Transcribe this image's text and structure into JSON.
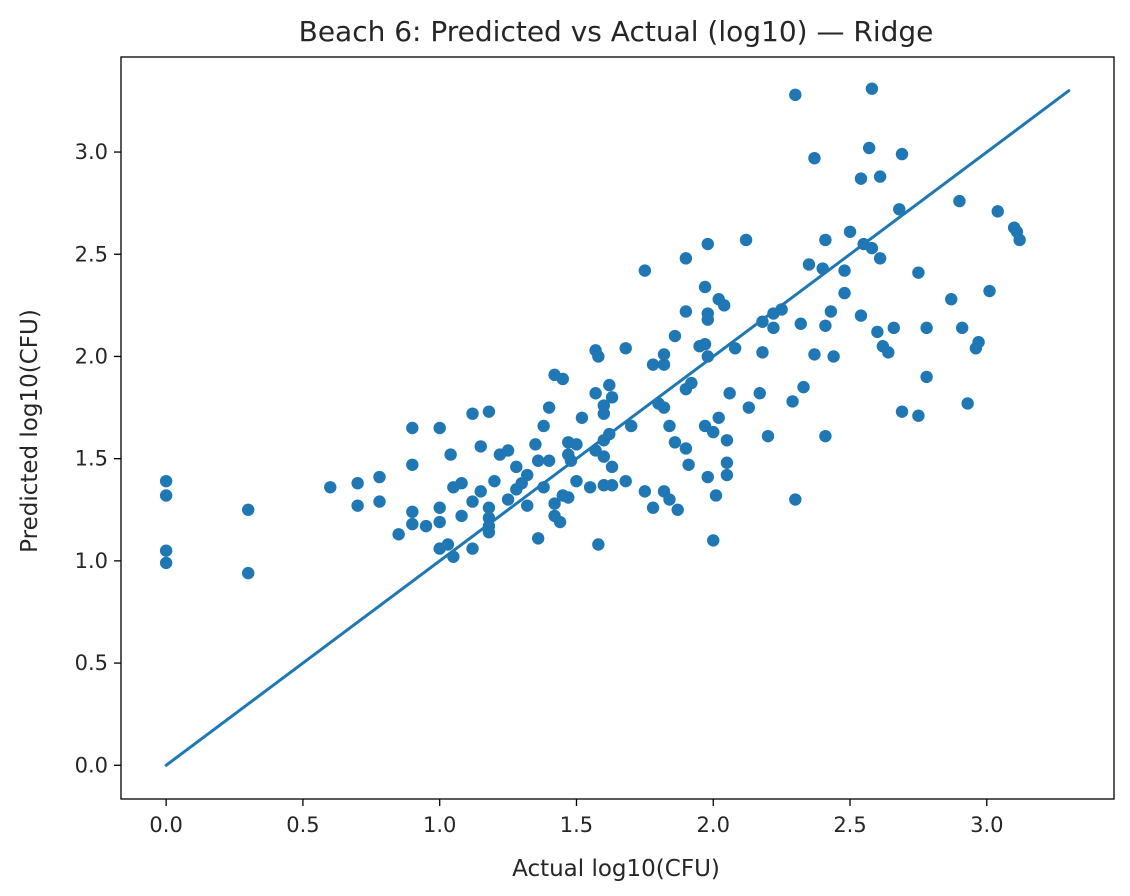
{
  "chart_data": {
    "type": "scatter",
    "title": "Beach 6: Predicted vs Actual (log10) — Ridge",
    "xlabel": "Actual log10(CFU)",
    "ylabel": "Predicted log10(CFU)",
    "xlim": [
      -0.165,
      3.465
    ],
    "ylim": [
      -0.165,
      3.465
    ],
    "x_ticks": [
      0.0,
      0.5,
      1.0,
      1.5,
      2.0,
      2.5,
      3.0
    ],
    "y_ticks": [
      0.0,
      0.5,
      1.0,
      1.5,
      2.0,
      2.5,
      3.0
    ],
    "x_tick_labels": [
      "0.0",
      "0.5",
      "1.0",
      "1.5",
      "2.0",
      "2.5",
      "3.0"
    ],
    "y_tick_labels": [
      "0.0",
      "0.5",
      "1.0",
      "1.5",
      "2.0",
      "2.5",
      "3.0"
    ],
    "grid": false,
    "colors": {
      "series": "#1f77b4",
      "axes": "#000000",
      "text": "#262626"
    },
    "reference_line": {
      "x": [
        0.0,
        3.3
      ],
      "y": [
        0.0,
        3.3
      ]
    },
    "series": [
      {
        "points": [
          [
            0.0,
            1.39
          ],
          [
            0.0,
            1.32
          ],
          [
            0.0,
            1.05
          ],
          [
            0.0,
            0.99
          ],
          [
            0.3,
            1.25
          ],
          [
            0.3,
            0.94
          ],
          [
            0.6,
            1.36
          ],
          [
            0.7,
            1.38
          ],
          [
            0.7,
            1.27
          ],
          [
            0.78,
            1.41
          ],
          [
            0.78,
            1.29
          ],
          [
            0.85,
            1.13
          ],
          [
            0.9,
            1.65
          ],
          [
            0.9,
            1.47
          ],
          [
            0.9,
            1.24
          ],
          [
            0.9,
            1.18
          ],
          [
            0.95,
            1.17
          ],
          [
            1.0,
            1.65
          ],
          [
            1.0,
            1.26
          ],
          [
            1.0,
            1.19
          ],
          [
            1.0,
            1.06
          ],
          [
            1.03,
            1.08
          ],
          [
            1.04,
            1.52
          ],
          [
            1.05,
            1.36
          ],
          [
            1.05,
            1.02
          ],
          [
            1.08,
            1.38
          ],
          [
            1.08,
            1.22
          ],
          [
            1.12,
            1.72
          ],
          [
            1.12,
            1.29
          ],
          [
            1.12,
            1.06
          ],
          [
            1.15,
            1.56
          ],
          [
            1.15,
            1.34
          ],
          [
            1.18,
            1.73
          ],
          [
            1.18,
            1.26
          ],
          [
            1.18,
            1.21
          ],
          [
            1.18,
            1.17
          ],
          [
            1.18,
            1.14
          ],
          [
            1.2,
            1.39
          ],
          [
            1.22,
            1.52
          ],
          [
            1.25,
            1.54
          ],
          [
            1.25,
            1.3
          ],
          [
            1.28,
            1.46
          ],
          [
            1.28,
            1.35
          ],
          [
            1.3,
            1.38
          ],
          [
            1.32,
            1.42
          ],
          [
            1.32,
            1.27
          ],
          [
            1.35,
            1.57
          ],
          [
            1.36,
            1.49
          ],
          [
            1.36,
            1.11
          ],
          [
            1.38,
            1.66
          ],
          [
            1.38,
            1.36
          ],
          [
            1.4,
            1.75
          ],
          [
            1.4,
            1.49
          ],
          [
            1.42,
            1.91
          ],
          [
            1.42,
            1.28
          ],
          [
            1.42,
            1.22
          ],
          [
            1.44,
            1.19
          ],
          [
            1.45,
            1.89
          ],
          [
            1.45,
            1.32
          ],
          [
            1.47,
            1.58
          ],
          [
            1.47,
            1.52
          ],
          [
            1.47,
            1.31
          ],
          [
            1.48,
            1.49
          ],
          [
            1.5,
            1.57
          ],
          [
            1.5,
            1.39
          ],
          [
            1.52,
            1.7
          ],
          [
            1.55,
            1.36
          ],
          [
            1.57,
            2.03
          ],
          [
            1.57,
            1.82
          ],
          [
            1.57,
            1.54
          ],
          [
            1.58,
            2.0
          ],
          [
            1.58,
            1.08
          ],
          [
            1.6,
            1.76
          ],
          [
            1.6,
            1.72
          ],
          [
            1.6,
            1.59
          ],
          [
            1.6,
            1.51
          ],
          [
            1.6,
            1.37
          ],
          [
            1.62,
            1.86
          ],
          [
            1.62,
            1.62
          ],
          [
            1.63,
            1.8
          ],
          [
            1.63,
            1.46
          ],
          [
            1.63,
            1.37
          ],
          [
            1.68,
            2.04
          ],
          [
            1.68,
            1.39
          ],
          [
            1.7,
            1.66
          ],
          [
            1.75,
            2.42
          ],
          [
            1.75,
            1.34
          ],
          [
            1.78,
            1.96
          ],
          [
            1.78,
            1.26
          ],
          [
            1.8,
            1.77
          ],
          [
            1.82,
            2.01
          ],
          [
            1.82,
            1.96
          ],
          [
            1.82,
            1.75
          ],
          [
            1.82,
            1.34
          ],
          [
            1.84,
            1.66
          ],
          [
            1.84,
            1.3
          ],
          [
            1.86,
            2.1
          ],
          [
            1.86,
            1.58
          ],
          [
            1.87,
            1.25
          ],
          [
            1.9,
            2.48
          ],
          [
            1.9,
            2.22
          ],
          [
            1.9,
            1.84
          ],
          [
            1.9,
            1.55
          ],
          [
            1.91,
            1.47
          ],
          [
            1.92,
            1.87
          ],
          [
            1.95,
            2.05
          ],
          [
            1.97,
            2.34
          ],
          [
            1.97,
            2.06
          ],
          [
            1.97,
            1.66
          ],
          [
            1.98,
            2.55
          ],
          [
            1.98,
            2.21
          ],
          [
            1.98,
            2.18
          ],
          [
            1.98,
            2.0
          ],
          [
            1.98,
            1.41
          ],
          [
            2.0,
            1.63
          ],
          [
            2.0,
            1.1
          ],
          [
            2.01,
            1.32
          ],
          [
            2.02,
            2.28
          ],
          [
            2.02,
            1.7
          ],
          [
            2.04,
            2.25
          ],
          [
            2.05,
            1.59
          ],
          [
            2.05,
            1.48
          ],
          [
            2.05,
            1.42
          ],
          [
            2.06,
            1.82
          ],
          [
            2.08,
            2.04
          ],
          [
            2.12,
            2.57
          ],
          [
            2.13,
            1.75
          ],
          [
            2.17,
            1.82
          ],
          [
            2.18,
            2.17
          ],
          [
            2.18,
            2.02
          ],
          [
            2.2,
            1.61
          ],
          [
            2.22,
            2.21
          ],
          [
            2.22,
            2.14
          ],
          [
            2.25,
            2.23
          ],
          [
            2.29,
            1.78
          ],
          [
            2.3,
            3.28
          ],
          [
            2.3,
            1.3
          ],
          [
            2.32,
            2.16
          ],
          [
            2.33,
            1.85
          ],
          [
            2.35,
            2.45
          ],
          [
            2.37,
            2.97
          ],
          [
            2.37,
            2.01
          ],
          [
            2.4,
            2.43
          ],
          [
            2.41,
            2.57
          ],
          [
            2.41,
            2.15
          ],
          [
            2.41,
            1.61
          ],
          [
            2.43,
            2.22
          ],
          [
            2.44,
            2.0
          ],
          [
            2.48,
            2.42
          ],
          [
            2.48,
            2.31
          ],
          [
            2.5,
            2.61
          ],
          [
            2.54,
            2.87
          ],
          [
            2.54,
            2.2
          ],
          [
            2.55,
            2.55
          ],
          [
            2.57,
            3.02
          ],
          [
            2.58,
            3.31
          ],
          [
            2.58,
            2.53
          ],
          [
            2.6,
            2.12
          ],
          [
            2.61,
            2.88
          ],
          [
            2.61,
            2.48
          ],
          [
            2.62,
            2.05
          ],
          [
            2.64,
            2.02
          ],
          [
            2.66,
            2.14
          ],
          [
            2.69,
            2.99
          ],
          [
            2.68,
            2.72
          ],
          [
            2.69,
            1.73
          ],
          [
            2.75,
            2.41
          ],
          [
            2.75,
            1.71
          ],
          [
            2.78,
            2.14
          ],
          [
            2.78,
            1.9
          ],
          [
            2.87,
            2.28
          ],
          [
            2.9,
            2.76
          ],
          [
            2.91,
            2.14
          ],
          [
            2.93,
            1.77
          ],
          [
            2.96,
            2.04
          ],
          [
            2.97,
            2.07
          ],
          [
            3.01,
            2.32
          ],
          [
            3.04,
            2.71
          ],
          [
            3.1,
            2.63
          ],
          [
            3.11,
            2.61
          ],
          [
            3.12,
            2.57
          ]
        ]
      }
    ]
  }
}
